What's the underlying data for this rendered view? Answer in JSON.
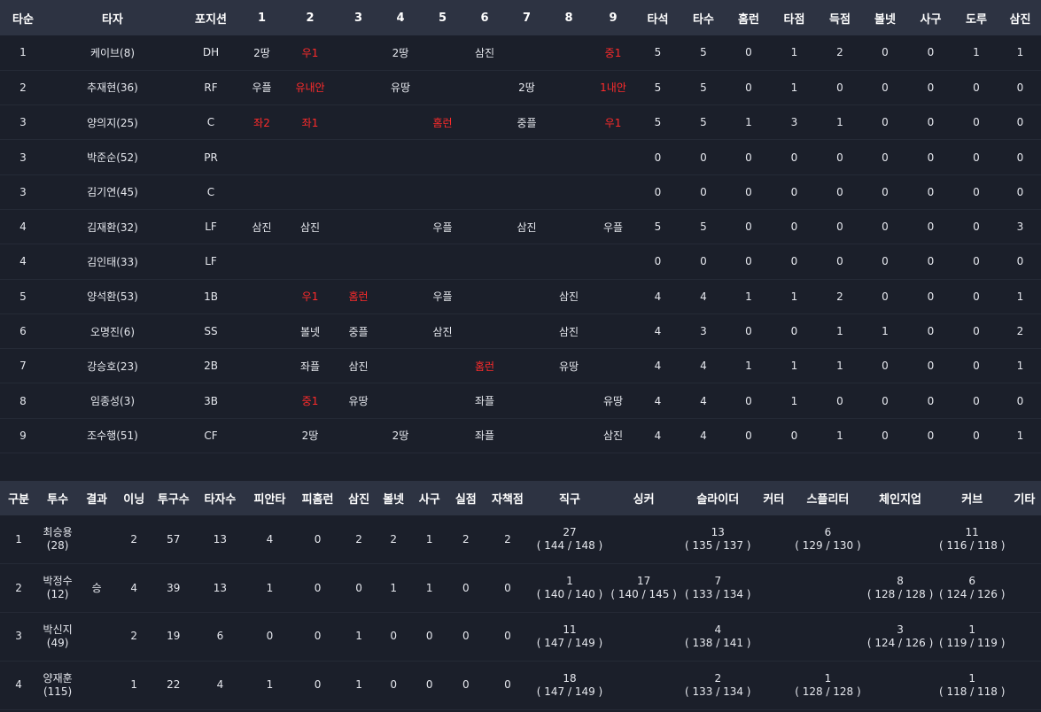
{
  "batting": {
    "headers": [
      "타순",
      "타자",
      "포지션",
      "1",
      "2",
      "3",
      "4",
      "5",
      "6",
      "7",
      "8",
      "9",
      "타석",
      "타수",
      "홈런",
      "타점",
      "득점",
      "볼넷",
      "사구",
      "도루",
      "삼진"
    ],
    "rows": [
      {
        "order": "1",
        "name": "케이브(8)",
        "pos": "DH",
        "innings": [
          {
            "t": "2땅"
          },
          {
            "t": "우1",
            "hit": true
          },
          {
            "t": ""
          },
          {
            "t": "2땅"
          },
          {
            "t": ""
          },
          {
            "t": "삼진"
          },
          {
            "t": ""
          },
          {
            "t": ""
          },
          {
            "t": "중1",
            "hit": true
          }
        ],
        "stats": [
          "5",
          "5",
          "0",
          "1",
          "2",
          "0",
          "0",
          "1",
          "1"
        ]
      },
      {
        "order": "2",
        "name": "추재현(36)",
        "pos": "RF",
        "innings": [
          {
            "t": "우플"
          },
          {
            "t": "유내안",
            "hit": true
          },
          {
            "t": ""
          },
          {
            "t": "유땅"
          },
          {
            "t": ""
          },
          {
            "t": ""
          },
          {
            "t": "2땅"
          },
          {
            "t": ""
          },
          {
            "t": "1내안",
            "hit": true
          }
        ],
        "stats": [
          "5",
          "5",
          "0",
          "1",
          "0",
          "0",
          "0",
          "0",
          "0"
        ]
      },
      {
        "order": "3",
        "name": "양의지(25)",
        "pos": "C",
        "innings": [
          {
            "t": "좌2",
            "hit": true
          },
          {
            "t": "좌1",
            "hit": true
          },
          {
            "t": ""
          },
          {
            "t": ""
          },
          {
            "t": "홈런",
            "hit": true
          },
          {
            "t": ""
          },
          {
            "t": "중플"
          },
          {
            "t": ""
          },
          {
            "t": "우1",
            "hit": true
          }
        ],
        "stats": [
          "5",
          "5",
          "1",
          "3",
          "1",
          "0",
          "0",
          "0",
          "0"
        ]
      },
      {
        "order": "3",
        "name": "박준순(52)",
        "pos": "PR",
        "innings": [
          {
            "t": ""
          },
          {
            "t": ""
          },
          {
            "t": ""
          },
          {
            "t": ""
          },
          {
            "t": ""
          },
          {
            "t": ""
          },
          {
            "t": ""
          },
          {
            "t": ""
          },
          {
            "t": ""
          }
        ],
        "stats": [
          "0",
          "0",
          "0",
          "0",
          "0",
          "0",
          "0",
          "0",
          "0"
        ]
      },
      {
        "order": "3",
        "name": "김기연(45)",
        "pos": "C",
        "innings": [
          {
            "t": ""
          },
          {
            "t": ""
          },
          {
            "t": ""
          },
          {
            "t": ""
          },
          {
            "t": ""
          },
          {
            "t": ""
          },
          {
            "t": ""
          },
          {
            "t": ""
          },
          {
            "t": ""
          }
        ],
        "stats": [
          "0",
          "0",
          "0",
          "0",
          "0",
          "0",
          "0",
          "0",
          "0"
        ]
      },
      {
        "order": "4",
        "name": "김재환(32)",
        "pos": "LF",
        "innings": [
          {
            "t": "삼진"
          },
          {
            "t": "삼진"
          },
          {
            "t": ""
          },
          {
            "t": ""
          },
          {
            "t": "우플"
          },
          {
            "t": ""
          },
          {
            "t": "삼진"
          },
          {
            "t": ""
          },
          {
            "t": "우플"
          }
        ],
        "stats": [
          "5",
          "5",
          "0",
          "0",
          "0",
          "0",
          "0",
          "0",
          "3"
        ]
      },
      {
        "order": "4",
        "name": "김인태(33)",
        "pos": "LF",
        "innings": [
          {
            "t": ""
          },
          {
            "t": ""
          },
          {
            "t": ""
          },
          {
            "t": ""
          },
          {
            "t": ""
          },
          {
            "t": ""
          },
          {
            "t": ""
          },
          {
            "t": ""
          },
          {
            "t": ""
          }
        ],
        "stats": [
          "0",
          "0",
          "0",
          "0",
          "0",
          "0",
          "0",
          "0",
          "0"
        ]
      },
      {
        "order": "5",
        "name": "양석환(53)",
        "pos": "1B",
        "innings": [
          {
            "t": ""
          },
          {
            "t": "우1",
            "hit": true
          },
          {
            "t": "홈런",
            "hit": true
          },
          {
            "t": ""
          },
          {
            "t": "우플"
          },
          {
            "t": ""
          },
          {
            "t": ""
          },
          {
            "t": "삼진"
          },
          {
            "t": ""
          }
        ],
        "stats": [
          "4",
          "4",
          "1",
          "1",
          "2",
          "0",
          "0",
          "0",
          "1"
        ]
      },
      {
        "order": "6",
        "name": "오명진(6)",
        "pos": "SS",
        "innings": [
          {
            "t": ""
          },
          {
            "t": "볼넷"
          },
          {
            "t": "중플"
          },
          {
            "t": ""
          },
          {
            "t": "삼진"
          },
          {
            "t": ""
          },
          {
            "t": ""
          },
          {
            "t": "삼진"
          },
          {
            "t": ""
          }
        ],
        "stats": [
          "4",
          "3",
          "0",
          "0",
          "1",
          "1",
          "0",
          "0",
          "2"
        ]
      },
      {
        "order": "7",
        "name": "강승호(23)",
        "pos": "2B",
        "innings": [
          {
            "t": ""
          },
          {
            "t": "좌플"
          },
          {
            "t": "삼진"
          },
          {
            "t": ""
          },
          {
            "t": ""
          },
          {
            "t": "홈런",
            "hit": true
          },
          {
            "t": ""
          },
          {
            "t": "유땅"
          },
          {
            "t": ""
          }
        ],
        "stats": [
          "4",
          "4",
          "1",
          "1",
          "1",
          "0",
          "0",
          "0",
          "1"
        ]
      },
      {
        "order": "8",
        "name": "임종성(3)",
        "pos": "3B",
        "innings": [
          {
            "t": ""
          },
          {
            "t": "중1",
            "hit": true
          },
          {
            "t": "유땅"
          },
          {
            "t": ""
          },
          {
            "t": ""
          },
          {
            "t": "좌플"
          },
          {
            "t": ""
          },
          {
            "t": ""
          },
          {
            "t": "유땅"
          }
        ],
        "stats": [
          "4",
          "4",
          "0",
          "1",
          "0",
          "0",
          "0",
          "0",
          "0"
        ]
      },
      {
        "order": "9",
        "name": "조수행(51)",
        "pos": "CF",
        "innings": [
          {
            "t": ""
          },
          {
            "t": "2땅"
          },
          {
            "t": ""
          },
          {
            "t": "2땅"
          },
          {
            "t": ""
          },
          {
            "t": "좌플"
          },
          {
            "t": ""
          },
          {
            "t": ""
          },
          {
            "t": "삼진"
          }
        ],
        "stats": [
          "4",
          "4",
          "0",
          "0",
          "1",
          "0",
          "0",
          "0",
          "1"
        ]
      }
    ]
  },
  "pitching": {
    "headers": [
      "구분",
      "투수",
      "결과",
      "이닝",
      "투구수",
      "타자수",
      "피안타",
      "피홈런",
      "삼진",
      "볼넷",
      "사구",
      "실점",
      "자책점",
      "직구",
      "싱커",
      "슬라이더",
      "커터",
      "스플리터",
      "체인지업",
      "커브",
      "기타"
    ],
    "rows": [
      {
        "num": "1",
        "name": "최승용",
        "num2": "(28)",
        "result": "",
        "ip": "2",
        "pitches": "57",
        "bf": "13",
        "hits": "4",
        "hr": "0",
        "so": "2",
        "bb": "2",
        "hbp": "1",
        "runs": "2",
        "er": "2",
        "pt": [
          {
            "c": "27",
            "v": "( 144 / 148 )"
          },
          {
            "c": "",
            "v": ""
          },
          {
            "c": "13",
            "v": "( 135 / 137 )"
          },
          {
            "c": "",
            "v": ""
          },
          {
            "c": "6",
            "v": "( 129 / 130 )"
          },
          {
            "c": "",
            "v": ""
          },
          {
            "c": "11",
            "v": "( 116 / 118 )"
          },
          {
            "c": "",
            "v": ""
          }
        ]
      },
      {
        "num": "2",
        "name": "박정수",
        "num2": "(12)",
        "result": "승",
        "ip": "4",
        "pitches": "39",
        "bf": "13",
        "hits": "1",
        "hr": "0",
        "so": "0",
        "bb": "1",
        "hbp": "1",
        "runs": "0",
        "er": "0",
        "pt": [
          {
            "c": "1",
            "v": "( 140 / 140 )"
          },
          {
            "c": "17",
            "v": "( 140 / 145 )"
          },
          {
            "c": "7",
            "v": "( 133 / 134 )"
          },
          {
            "c": "",
            "v": ""
          },
          {
            "c": "",
            "v": ""
          },
          {
            "c": "8",
            "v": "( 128 / 128 )"
          },
          {
            "c": "6",
            "v": "( 124 / 126 )"
          },
          {
            "c": "",
            "v": ""
          }
        ]
      },
      {
        "num": "3",
        "name": "박신지",
        "num2": "(49)",
        "result": "",
        "ip": "2",
        "pitches": "19",
        "bf": "6",
        "hits": "0",
        "hr": "0",
        "so": "1",
        "bb": "0",
        "hbp": "0",
        "runs": "0",
        "er": "0",
        "pt": [
          {
            "c": "11",
            "v": "( 147 / 149 )"
          },
          {
            "c": "",
            "v": ""
          },
          {
            "c": "4",
            "v": "( 138 / 141 )"
          },
          {
            "c": "",
            "v": ""
          },
          {
            "c": "",
            "v": ""
          },
          {
            "c": "3",
            "v": "( 124 / 126 )"
          },
          {
            "c": "1",
            "v": "( 119 / 119 )"
          },
          {
            "c": "",
            "v": ""
          }
        ]
      },
      {
        "num": "4",
        "name": "양재훈",
        "num2": "(115)",
        "result": "",
        "ip": "1",
        "pitches": "22",
        "bf": "4",
        "hits": "1",
        "hr": "0",
        "so": "1",
        "bb": "0",
        "hbp": "0",
        "runs": "0",
        "er": "0",
        "pt": [
          {
            "c": "18",
            "v": "( 147 / 149 )"
          },
          {
            "c": "",
            "v": ""
          },
          {
            "c": "2",
            "v": "( 133 / 134 )"
          },
          {
            "c": "",
            "v": ""
          },
          {
            "c": "1",
            "v": "( 128 / 128 )"
          },
          {
            "c": "",
            "v": ""
          },
          {
            "c": "1",
            "v": "( 118 / 118 )"
          },
          {
            "c": "",
            "v": ""
          }
        ]
      }
    ]
  }
}
